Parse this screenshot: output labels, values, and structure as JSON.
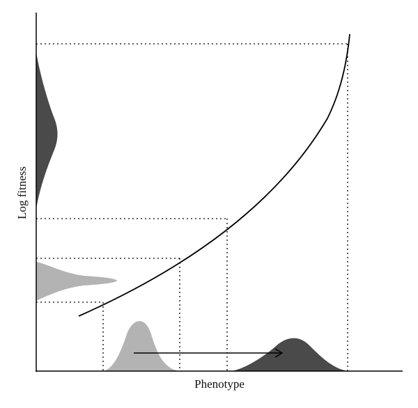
{
  "diagram": {
    "x_axis_label": "Phenotype",
    "y_axis_label": "Log fitness"
  },
  "colors": {
    "axis": "#000000",
    "curve": "#000000",
    "guide_lines": "#000000",
    "initial_distribution": "#b3b3b3",
    "shifted_distribution": "#4a4a4a"
  },
  "icons": {
    "shift_arrow": "right-arrow-icon"
  }
}
